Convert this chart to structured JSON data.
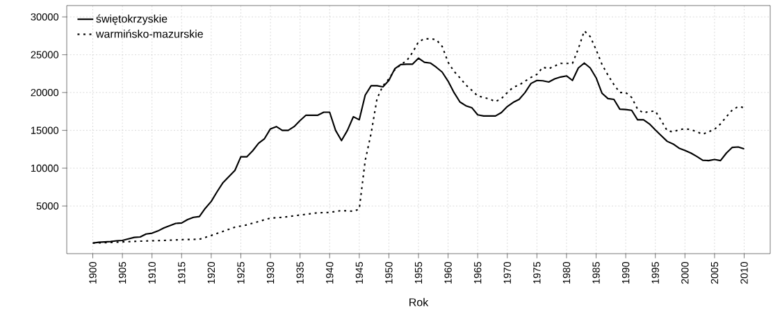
{
  "chart_data": {
    "type": "line",
    "xlabel": "Rok",
    "xlim": [
      1895.6,
      2014.4
    ],
    "ylim": [
      -1300,
      31500
    ],
    "xticks": [
      1900,
      1905,
      1910,
      1915,
      1920,
      1925,
      1930,
      1935,
      1940,
      1945,
      1950,
      1955,
      1960,
      1965,
      1970,
      1975,
      1980,
      1985,
      1990,
      1995,
      2000,
      2005,
      2010
    ],
    "yticks": [
      5000,
      10000,
      15000,
      20000,
      25000,
      30000
    ],
    "grid": true,
    "legend": "top left",
    "series": [
      {
        "name": "świętokrzyskie",
        "color": "#000000",
        "line_style": "solid",
        "x": [
          1900,
          1901,
          1902,
          1903,
          1904,
          1905,
          1906,
          1907,
          1908,
          1909,
          1910,
          1911,
          1912,
          1913,
          1914,
          1915,
          1916,
          1917,
          1918,
          1919,
          1920,
          1921,
          1922,
          1923,
          1924,
          1925,
          1926,
          1927,
          1928,
          1929,
          1930,
          1931,
          1932,
          1933,
          1934,
          1935,
          1936,
          1937,
          1938,
          1939,
          1940,
          1941,
          1942,
          1943,
          1944,
          1945,
          1946,
          1947,
          1948,
          1949,
          1950,
          1951,
          1952,
          1953,
          1954,
          1955,
          1956,
          1957,
          1958,
          1959,
          1960,
          1961,
          1962,
          1963,
          1964,
          1965,
          1966,
          1967,
          1968,
          1969,
          1970,
          1971,
          1972,
          1973,
          1974,
          1975,
          1976,
          1977,
          1978,
          1979,
          1980,
          1981,
          1982,
          1983,
          1984,
          1985,
          1986,
          1987,
          1988,
          1989,
          1990,
          1991,
          1992,
          1993,
          1994,
          1995,
          1996,
          1997,
          1998,
          1999,
          2000,
          2001,
          2002,
          2003,
          2004,
          2005,
          2006,
          2007,
          2008,
          2009,
          2010
        ],
        "values": [
          100,
          200,
          250,
          300,
          400,
          450,
          650,
          850,
          900,
          1300,
          1400,
          1700,
          2100,
          2400,
          2700,
          2750,
          3200,
          3500,
          3600,
          4700,
          5600,
          6900,
          8100,
          8900,
          9700,
          11500,
          11500,
          12300,
          13300,
          13900,
          15200,
          15500,
          15000,
          15000,
          15500,
          16300,
          17000,
          17000,
          17000,
          17400,
          17400,
          15000,
          13650,
          15000,
          16800,
          16400,
          19650,
          20900,
          20900,
          20750,
          21600,
          23150,
          23700,
          23750,
          23750,
          24550,
          24000,
          23900,
          23350,
          22700,
          21500,
          20000,
          18750,
          18250,
          18000,
          17050,
          16900,
          16900,
          16900,
          17350,
          18150,
          18700,
          19100,
          20000,
          21200,
          21600,
          21550,
          21400,
          21800,
          22050,
          22200,
          21600,
          23250,
          23900,
          23250,
          21950,
          19900,
          19200,
          19100,
          17800,
          17750,
          17650,
          16400,
          16400,
          15850,
          15050,
          14300,
          13550,
          13200,
          12650,
          12350,
          12000,
          11550,
          11050,
          11000,
          11150,
          11000,
          12000,
          12750,
          12800,
          12550
        ]
      },
      {
        "name": "warmińsko-mazurskie",
        "color": "#000000",
        "line_style": "dotted",
        "x": [
          1900,
          1902,
          1905,
          1908,
          1910,
          1912,
          1915,
          1918,
          1920,
          1922,
          1924,
          1926,
          1928,
          1930,
          1932,
          1934,
          1936,
          1938,
          1940,
          1942,
          1944,
          1945,
          1946,
          1947,
          1948,
          1949,
          1950,
          1951,
          1952,
          1953,
          1954,
          1955,
          1956,
          1957,
          1958,
          1959,
          1960,
          1961,
          1962,
          1963,
          1964,
          1965,
          1966,
          1967,
          1968,
          1969,
          1970,
          1971,
          1972,
          1973,
          1974,
          1975,
          1976,
          1977,
          1978,
          1979,
          1980,
          1981,
          1982,
          1983,
          1984,
          1985,
          1986,
          1987,
          1988,
          1989,
          1990,
          1991,
          1992,
          1993,
          1994,
          1995,
          1996,
          1997,
          1998,
          1999,
          2000,
          2001,
          2002,
          2003,
          2004,
          2005,
          2006,
          2007,
          2008,
          2009,
          2010
        ],
        "values": [
          100,
          150,
          250,
          350,
          400,
          450,
          550,
          600,
          1100,
          1650,
          2200,
          2500,
          2950,
          3400,
          3500,
          3700,
          3900,
          4100,
          4150,
          4400,
          4300,
          4600,
          11000,
          14600,
          19200,
          20900,
          21800,
          23000,
          23700,
          24200,
          25300,
          26700,
          27100,
          27100,
          27000,
          26100,
          24000,
          22800,
          21950,
          21000,
          20300,
          19550,
          19350,
          19150,
          18800,
          19200,
          20000,
          20700,
          21000,
          21500,
          22000,
          22400,
          23350,
          23150,
          23500,
          23850,
          23850,
          23850,
          25800,
          28150,
          27400,
          25650,
          23700,
          22300,
          21050,
          20000,
          20000,
          19350,
          17800,
          17300,
          17500,
          17550,
          16300,
          14950,
          14800,
          15100,
          15200,
          15100,
          14800,
          14500,
          14800,
          15150,
          15850,
          16800,
          17700,
          18150,
          18000
        ]
      }
    ]
  }
}
